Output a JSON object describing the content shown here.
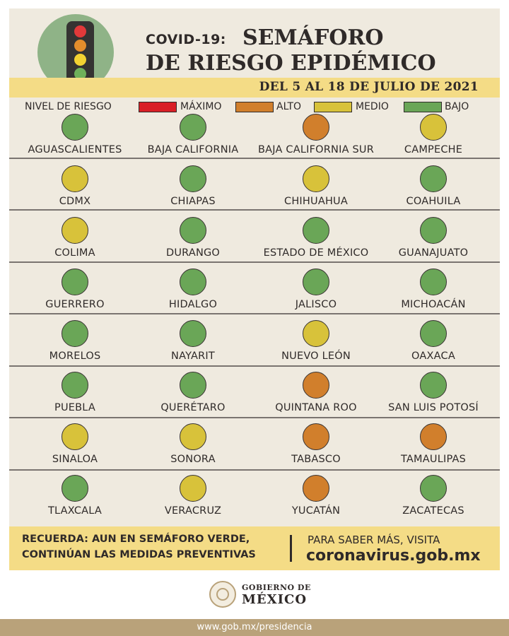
{
  "header": {
    "title_prefix": "COVID-19:",
    "title_line1": "SEMÁFORO",
    "title_line2": "DE RIESGO EPIDÉMICO",
    "date_range": "DEL 5 AL 18 DE JULIO DE 2021"
  },
  "traffic_light_icon": {
    "icon": "traffic-light-icon",
    "colors": {
      "red": "#e2393a",
      "orange": "#e38d2c",
      "yellow": "#f2d132",
      "green": "#6fb05a",
      "circle": "#8fb387",
      "body": "#353332"
    }
  },
  "legend": {
    "label": "NIVEL DE RIESGO",
    "levels": [
      {
        "key": "maximo",
        "label": "MÁXIMO",
        "color": "#d91f26"
      },
      {
        "key": "alto",
        "label": "ALTO",
        "color": "#d17f2c"
      },
      {
        "key": "medio",
        "label": "MEDIO",
        "color": "#d8c23a"
      },
      {
        "key": "bajo",
        "label": "BAJO",
        "color": "#6aa657"
      }
    ]
  },
  "states": [
    {
      "name": "AGUASCALIENTES",
      "level": "bajo"
    },
    {
      "name": "BAJA CALIFORNIA",
      "level": "bajo"
    },
    {
      "name": "BAJA CALIFORNIA SUR",
      "level": "alto"
    },
    {
      "name": "CAMPECHE",
      "level": "medio"
    },
    {
      "name": "CDMX",
      "level": "medio"
    },
    {
      "name": "CHIAPAS",
      "level": "bajo"
    },
    {
      "name": "CHIHUAHUA",
      "level": "medio"
    },
    {
      "name": "COAHUILA",
      "level": "bajo"
    },
    {
      "name": "COLIMA",
      "level": "medio"
    },
    {
      "name": "DURANGO",
      "level": "bajo"
    },
    {
      "name": "ESTADO DE MÉXICO",
      "level": "bajo"
    },
    {
      "name": "GUANAJUATO",
      "level": "bajo"
    },
    {
      "name": "GUERRERO",
      "level": "bajo"
    },
    {
      "name": "HIDALGO",
      "level": "bajo"
    },
    {
      "name": "JALISCO",
      "level": "bajo"
    },
    {
      "name": "MICHOACÁN",
      "level": "bajo"
    },
    {
      "name": "MORELOS",
      "level": "bajo"
    },
    {
      "name": "NAYARIT",
      "level": "bajo"
    },
    {
      "name": "NUEVO LEÓN",
      "level": "medio"
    },
    {
      "name": "OAXACA",
      "level": "bajo"
    },
    {
      "name": "PUEBLA",
      "level": "bajo"
    },
    {
      "name": "QUERÉTARO",
      "level": "bajo"
    },
    {
      "name": "QUINTANA ROO",
      "level": "alto"
    },
    {
      "name": "SAN LUIS POTOSÍ",
      "level": "bajo"
    },
    {
      "name": "SINALOA",
      "level": "medio"
    },
    {
      "name": "SONORA",
      "level": "medio"
    },
    {
      "name": "TABASCO",
      "level": "alto"
    },
    {
      "name": "TAMAULIPAS",
      "level": "alto"
    },
    {
      "name": "TLAXCALA",
      "level": "bajo"
    },
    {
      "name": "VERACRUZ",
      "level": "medio"
    },
    {
      "name": "YUCATÁN",
      "level": "alto"
    },
    {
      "name": "ZACATECAS",
      "level": "bajo"
    }
  ],
  "footer": {
    "reminder_label": "RECUERDA:",
    "reminder_line1": "AUN EN SEMÁFORO VERDE,",
    "reminder_line2": "CONTINÚAN LAS MEDIDAS PREVENTIVAS",
    "info_line": "PARA SABER MÁS, VISITA",
    "website": "coronavirus.gob.mx"
  },
  "government": {
    "line1": "GOBIERNO DE",
    "line2": "MÉXICO",
    "seal_icon": "coat-of-arms-icon"
  },
  "bottom_bar": {
    "url": "www.gob.mx/presidencia"
  }
}
